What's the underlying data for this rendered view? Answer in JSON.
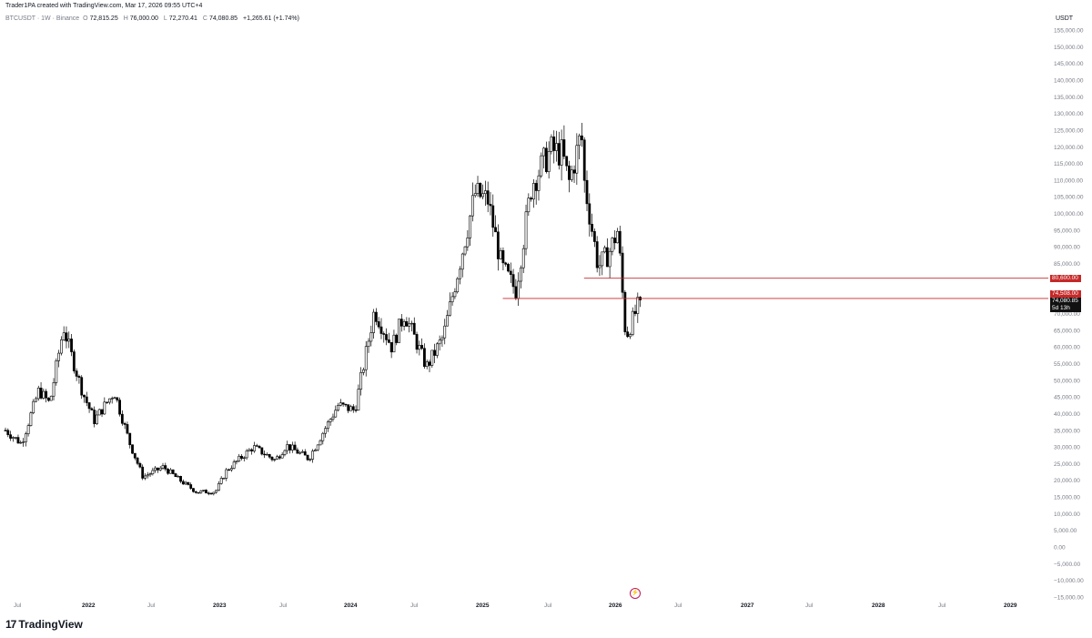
{
  "header": {
    "credit": "Trader1PA created with TradingView.com, Mar 17, 2026 09:55 UTC+4",
    "symbol": "BTCUSDT · 1W · Binance",
    "o_label": "O",
    "o": "72,815.25",
    "h_label": "H",
    "h": "76,000.00",
    "l_label": "L",
    "l": "72,270.41",
    "c_label": "C",
    "c": "74,080.85",
    "change": "+1,265.61 (+1.74%)"
  },
  "axis": {
    "unit": "USDT",
    "price_ticks": [
      "155,000.00",
      "150,000.00",
      "145,000.00",
      "140,000.00",
      "135,000.00",
      "130,000.00",
      "125,000.00",
      "120,000.00",
      "115,000.00",
      "110,000.00",
      "105,000.00",
      "100,000.00",
      "95,000.00",
      "90,000.00",
      "85,000.00",
      "75,000.00",
      "70,000.00",
      "65,000.00",
      "60,000.00",
      "55,000.00",
      "50,000.00",
      "45,000.00",
      "40,000.00",
      "35,000.00",
      "30,000.00",
      "25,000.00",
      "20,000.00",
      "15,000.00",
      "10,000.00",
      "5,000.00",
      "0.00",
      "−5,000.00",
      "−10,000.00",
      "−15,000.00"
    ],
    "time_ticks": [
      "Jul",
      "2022",
      "Jul",
      "2023",
      "Jul",
      "2024",
      "Jul",
      "2025",
      "Jul",
      "2026",
      "Jul",
      "2027",
      "Jul",
      "2028",
      "Jul",
      "2029"
    ]
  },
  "badges": {
    "level_high": "80,600.00",
    "level_low": "74,508.00",
    "current_price": "74,080.85",
    "countdown": "5d 13h"
  },
  "colors": {
    "line": "#c62828",
    "up": "#ffffff",
    "down": "#000000",
    "grid_text": "#787b86"
  },
  "footer": {
    "brand": "TradingView"
  },
  "chart_data": {
    "type": "candlestick",
    "interval": "1W",
    "ylim": [
      -15000,
      155000
    ],
    "horizontal_levels": [
      80600,
      74508
    ],
    "last_price": 74080.85,
    "close_path": [
      [
        "2021-06-01",
        35000
      ],
      [
        "2021-07-15",
        31000
      ],
      [
        "2021-09-01",
        47000
      ],
      [
        "2021-10-01",
        43000
      ],
      [
        "2021-11-08",
        66000
      ],
      [
        "2021-12-01",
        57000
      ],
      [
        "2022-01-01",
        46000
      ],
      [
        "2022-02-01",
        38000
      ],
      [
        "2022-03-28",
        46500
      ],
      [
        "2022-05-10",
        31000
      ],
      [
        "2022-06-15",
        21000
      ],
      [
        "2022-08-10",
        24000
      ],
      [
        "2022-10-01",
        19500
      ],
      [
        "2022-11-10",
        16500
      ],
      [
        "2023-01-01",
        16600
      ],
      [
        "2023-02-01",
        23000
      ],
      [
        "2023-04-15",
        30000
      ],
      [
        "2023-06-15",
        26000
      ],
      [
        "2023-07-15",
        30500
      ],
      [
        "2023-09-15",
        26500
      ],
      [
        "2023-10-25",
        34500
      ],
      [
        "2023-12-05",
        42500
      ],
      [
        "2024-01-20",
        41000
      ],
      [
        "2024-03-14",
        71000
      ],
      [
        "2024-05-01",
        60000
      ],
      [
        "2024-06-05",
        70000
      ],
      [
        "2024-08-05",
        54000
      ],
      [
        "2024-09-20",
        63000
      ],
      [
        "2024-11-12",
        89000
      ],
      [
        "2024-12-17",
        106000
      ],
      [
        "2025-01-21",
        104000
      ],
      [
        "2025-02-28",
        84000
      ],
      [
        "2025-04-08",
        77000
      ],
      [
        "2025-05-22",
        109000
      ],
      [
        "2025-07-14",
        119000
      ],
      [
        "2025-08-14",
        118000
      ],
      [
        "2025-09-01",
        109000
      ],
      [
        "2025-10-06",
        124000
      ],
      [
        "2025-10-13",
        110000
      ],
      [
        "2025-11-21",
        84000
      ],
      [
        "2025-12-20",
        88000
      ],
      [
        "2026-01-14",
        95000
      ],
      [
        "2026-02-05",
        63000
      ],
      [
        "2026-02-20",
        67000
      ],
      [
        "2026-03-17",
        74080
      ]
    ]
  }
}
